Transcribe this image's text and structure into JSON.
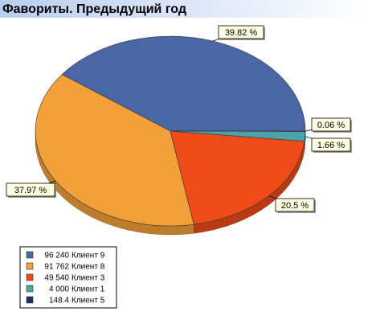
{
  "chart_data": {
    "type": "pie",
    "title": "Фавориты. Предыдущий год",
    "categories": [
      "Клиент 9",
      "Клиент 8",
      "Клиент 3",
      "Клиент 1",
      "Клиент 5"
    ],
    "values": [
      96240,
      91762,
      49540,
      4000,
      148.4
    ],
    "value_labels": [
      "96 240",
      "91 762",
      "49 540",
      "4 000",
      "148.4"
    ],
    "percent_labels": [
      "39.82 %",
      "37.97 %",
      "20.5 %",
      "1.66 %",
      "0.06 %"
    ],
    "colors": [
      "#4a66a4",
      "#f2a03a",
      "#ee4b18",
      "#4aa3a8",
      "#1f2c66"
    ]
  }
}
